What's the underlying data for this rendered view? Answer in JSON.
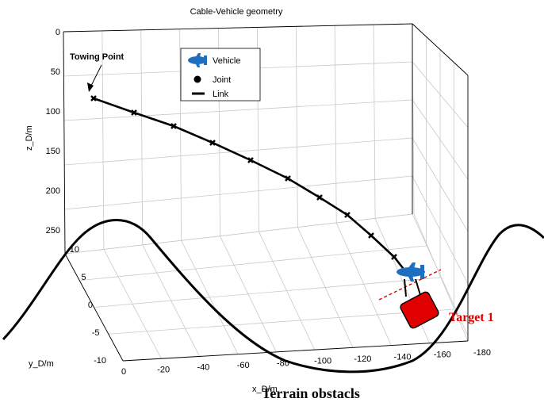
{
  "chart_data": {
    "type": "line",
    "title": "Cable-Vehicle geometry",
    "xlabel": "x_D/m",
    "ylabel": "y_D/m",
    "zlabel": "z_D/m",
    "x_ticks": [
      "0",
      "-20",
      "-40",
      "-60",
      "-80",
      "-100",
      "-120",
      "-140",
      "-160",
      "-180"
    ],
    "y_ticks": [
      "10",
      "5",
      "0",
      "-5",
      "-10"
    ],
    "z_ticks": [
      "0",
      "50",
      "100",
      "150",
      "200",
      "250"
    ],
    "xlim": [
      0,
      -180
    ],
    "ylim": [
      -10,
      10
    ],
    "zlim": [
      0,
      250
    ],
    "z_reversed": true,
    "grid": true,
    "legend": {
      "position": "top-center",
      "entries": [
        "Vehicle",
        "Joint",
        "Link"
      ]
    },
    "series": [
      {
        "name": "Link",
        "marker": "Joint",
        "color": "#000000",
        "points": [
          {
            "x": 0,
            "y": 0,
            "z": 55
          },
          {
            "x": -14,
            "y": 0,
            "z": 70
          },
          {
            "x": -29,
            "y": 0,
            "z": 85
          },
          {
            "x": -46,
            "y": 0,
            "z": 100
          },
          {
            "x": -64,
            "y": 0,
            "z": 117
          },
          {
            "x": -84,
            "y": 0,
            "z": 137
          },
          {
            "x": -103,
            "y": 0,
            "z": 158
          },
          {
            "x": -122,
            "y": 0,
            "z": 182
          },
          {
            "x": -137,
            "y": 0,
            "z": 208
          },
          {
            "x": -148,
            "y": 0,
            "z": 238
          }
        ]
      }
    ],
    "annotations": [
      {
        "text": "Towing Point"
      },
      {
        "text": "Target 1",
        "color": "#e00000"
      },
      {
        "text": "Terrain obstacls"
      }
    ],
    "colors": {
      "vehicle": "#1f6fc0",
      "target": "#e00000",
      "cable": "#000000",
      "terrain": "#000000"
    }
  }
}
